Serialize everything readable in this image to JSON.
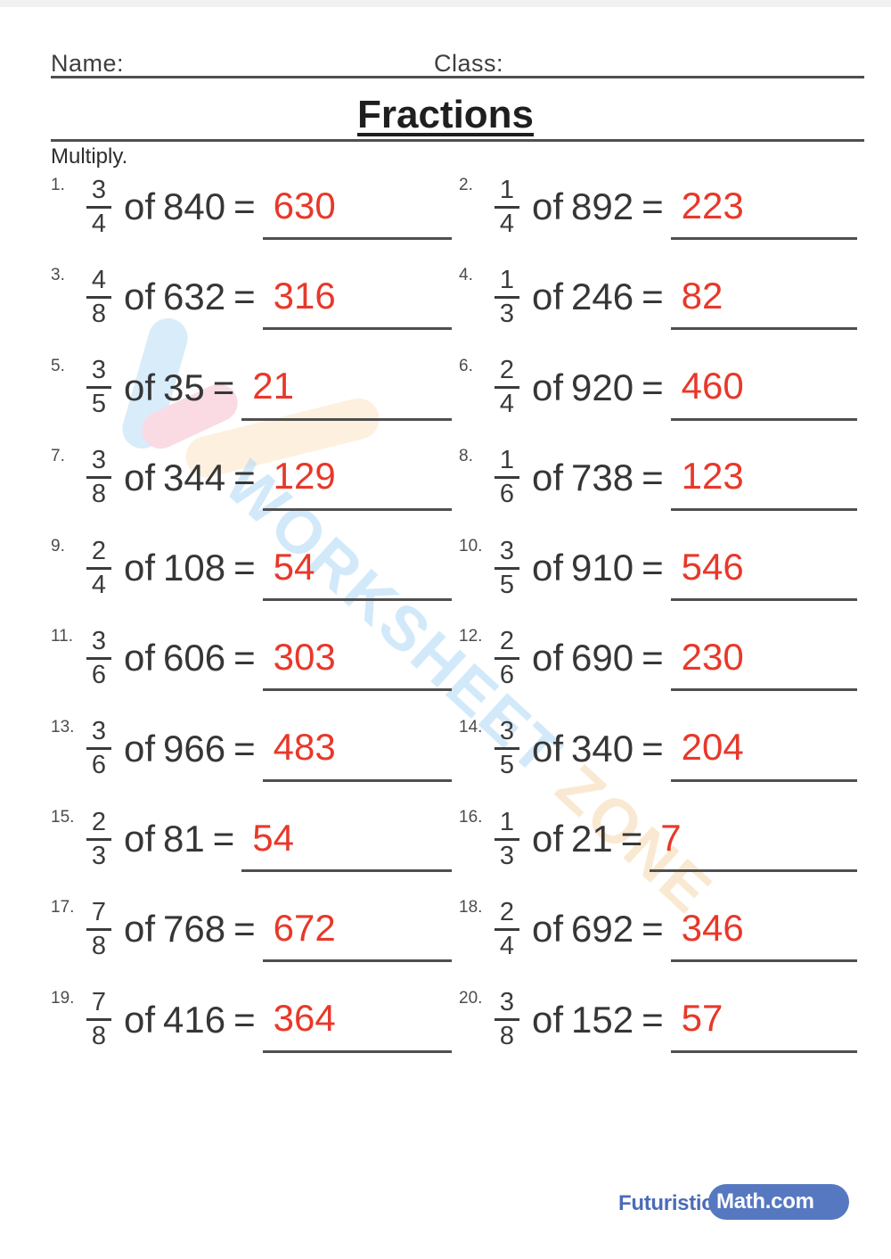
{
  "page": {
    "name_label": "Name:",
    "class_label": "Class:",
    "title": "Fractions",
    "instruction": "Multiply.",
    "of_label": "of",
    "equals_label": "=",
    "colors": {
      "answer_red": "#e8382a",
      "text_dark": "#363636",
      "rule_gray": "#4f4f4f",
      "brand_blue_text": "#4a6cb8",
      "brand_pill_blue": "#5578c1",
      "watermark_blue": "#add7f6",
      "watermark_orange": "#f7ddba",
      "logo_bar_blue": "#d8ecfa",
      "logo_bar_pink": "#fadbe3",
      "logo_bar_orange": "#fdeeda"
    },
    "watermark": {
      "text_primary": "WORKSHEET",
      "text_secondary": "ZONE"
    },
    "footer": {
      "brand_prefix": "Futuristic",
      "brand_suffix": "Math.com"
    }
  },
  "problems": [
    {
      "n": "1.",
      "numerator": "3",
      "denominator": "4",
      "operand": "840",
      "answer": "630"
    },
    {
      "n": "2.",
      "numerator": "1",
      "denominator": "4",
      "operand": "892",
      "answer": "223"
    },
    {
      "n": "3.",
      "numerator": "4",
      "denominator": "8",
      "operand": "632",
      "answer": "316"
    },
    {
      "n": "4.",
      "numerator": "1",
      "denominator": "3",
      "operand": "246",
      "answer": "82"
    },
    {
      "n": "5.",
      "numerator": "3",
      "denominator": "5",
      "operand": "35",
      "answer": "21"
    },
    {
      "n": "6.",
      "numerator": "2",
      "denominator": "4",
      "operand": "920",
      "answer": "460"
    },
    {
      "n": "7.",
      "numerator": "3",
      "denominator": "8",
      "operand": "344",
      "answer": "129"
    },
    {
      "n": "8.",
      "numerator": "1",
      "denominator": "6",
      "operand": "738",
      "answer": "123"
    },
    {
      "n": "9.",
      "numerator": "2",
      "denominator": "4",
      "operand": "108",
      "answer": "54"
    },
    {
      "n": "10.",
      "numerator": "3",
      "denominator": "5",
      "operand": "910",
      "answer": "546"
    },
    {
      "n": "11.",
      "numerator": "3",
      "denominator": "6",
      "operand": "606",
      "answer": "303"
    },
    {
      "n": "12.",
      "numerator": "2",
      "denominator": "6",
      "operand": "690",
      "answer": "230"
    },
    {
      "n": "13.",
      "numerator": "3",
      "denominator": "6",
      "operand": "966",
      "answer": "483"
    },
    {
      "n": "14.",
      "numerator": "3",
      "denominator": "5",
      "operand": "340",
      "answer": "204"
    },
    {
      "n": "15.",
      "numerator": "2",
      "denominator": "3",
      "operand": "81",
      "answer": "54"
    },
    {
      "n": "16.",
      "numerator": "1",
      "denominator": "3",
      "operand": "21",
      "answer": "7"
    },
    {
      "n": "17.",
      "numerator": "7",
      "denominator": "8",
      "operand": "768",
      "answer": "672"
    },
    {
      "n": "18.",
      "numerator": "2",
      "denominator": "4",
      "operand": "692",
      "answer": "346"
    },
    {
      "n": "19.",
      "numerator": "7",
      "denominator": "8",
      "operand": "416",
      "answer": "364"
    },
    {
      "n": "20.",
      "numerator": "3",
      "denominator": "8",
      "operand": "152",
      "answer": "57"
    }
  ]
}
